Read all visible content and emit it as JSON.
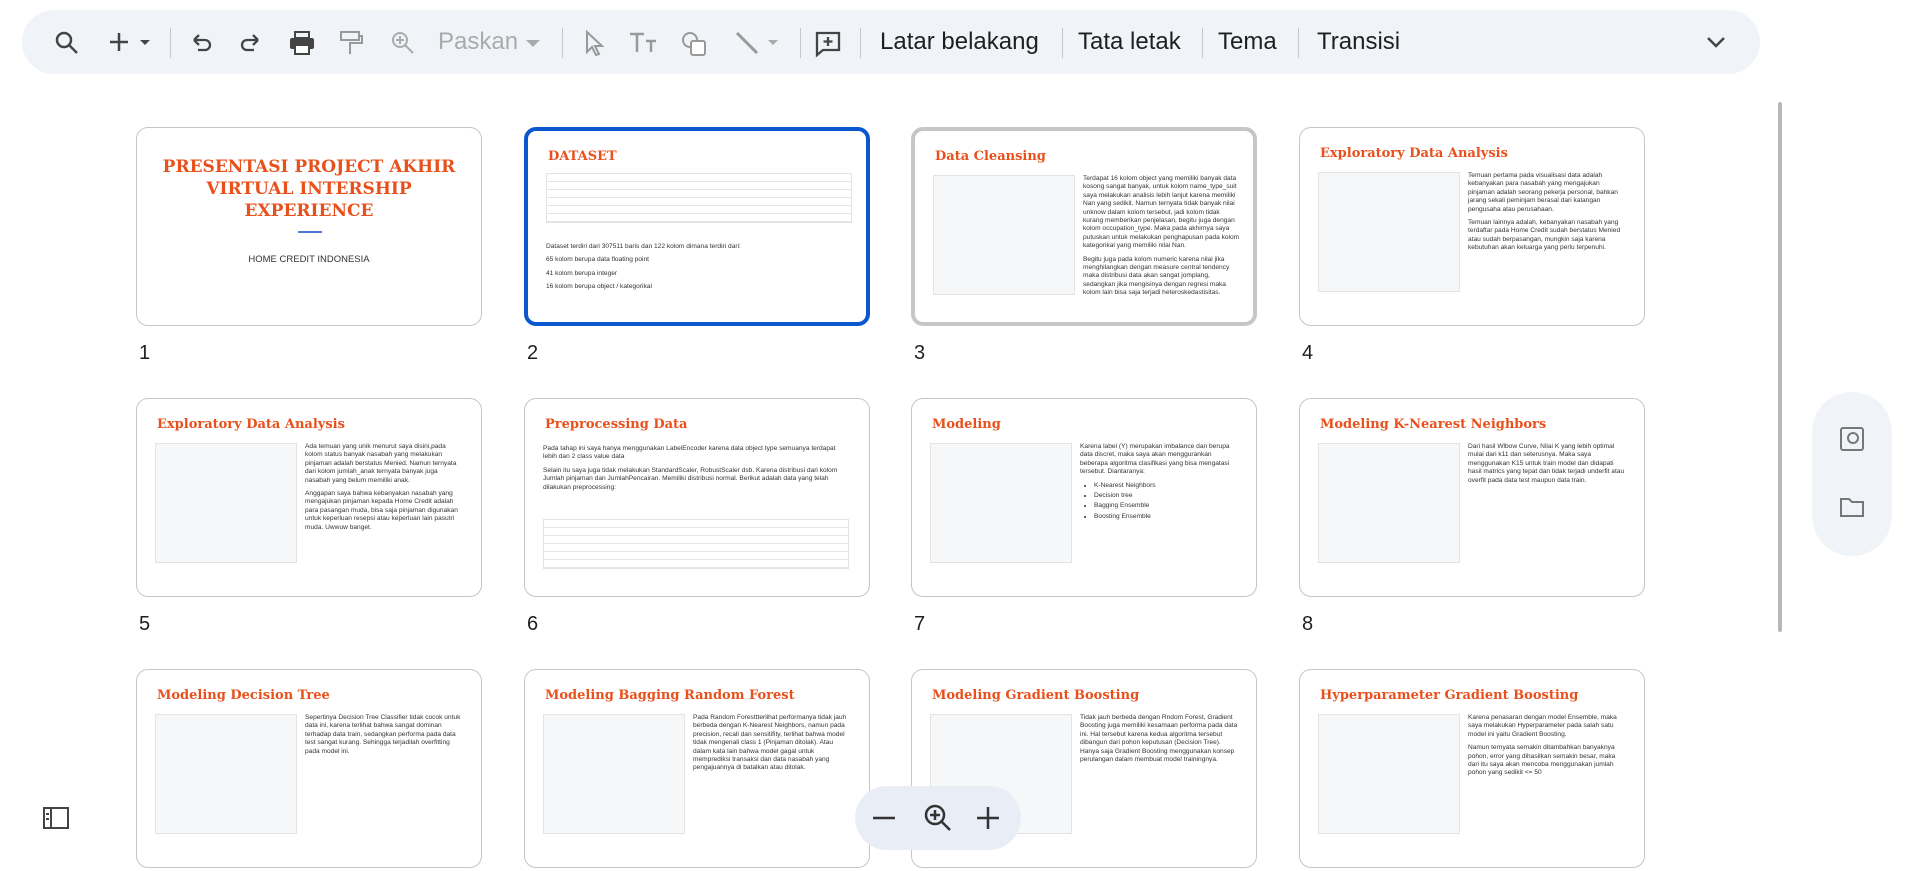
{
  "toolbar": {
    "zoom_label": "Paskan",
    "buttons": [
      "Latar belakang",
      "Tata letak",
      "Tema",
      "Transisi"
    ]
  },
  "slides": [
    {
      "number": "1",
      "title": "PRESENTASI PROJECT AKHIR VIRTUAL INTERSHIP EXPERIENCE",
      "paragraphs": [
        "HOME CREDIT INDONESIA"
      ]
    },
    {
      "number": "2",
      "title": "DATASET",
      "paragraphs": [
        "Dataset terdiri dari 307511 baris dan 122 kolom dimana terdiri dari:",
        "65 kolom berupa data floating point",
        "41 kolom berupa integer",
        "16 kolom berupa object / kategorikal"
      ]
    },
    {
      "number": "3",
      "title": "Data Cleansing",
      "paragraphs": [
        "Terdapat 16 kolom object yang memiliki banyak data kosong sangat banyak, untuk kolom name_type_suit saya melakukan analisis lebih lanjut karena memiliki Nan yang sedikit. Namun ternyata tidak banyak nilai unknow dalam kolom tersebut, jadi kolom tidak kurang memberikan penjelasan, begitu juga dengan kolom occupation_type. Maka pada akhirnya saya putuskan untuk melakukan penghapusan pada kolom kategorikal yang memiliki nilai Nan.",
        "Begitu juga pada kolom numeric karena nilai jika menghilangkan dengan measure central tendency maka distribusi data akan sangat jomplang, sedangkan jika mengisinya dengan regresi maka kolom lain bisa saja terjadi heteroskedastisitas."
      ]
    },
    {
      "number": "4",
      "title": "Exploratory Data Analysis",
      "paragraphs": [
        "Temuan pertama pada visualisasi data adalah kebanyakan para nasabah yang mengajukan pinjaman adalah seorang pekerja personal, bahkan jarang sekali peminjam berasal dari kalangan pengusaha atau perusahaan.",
        "Temuan lainnya adalah, kebanyakan nasabah yang terdaftar pada Home Credit sudah berstatus Menied atau sudah berpasangan, mungkin saja karena kebutuhan akan keluarga yang perlu terpenuhi."
      ]
    },
    {
      "number": "5",
      "title": "Exploratory Data Analysis",
      "paragraphs": [
        "Ada temuan yang unik menurut saya disini,pada kolom status banyak nasabah yang melakukan pinjaman adalah berstatus Menied. Namun ternyata dari kolom jumlah_anak ternyata banyak juga nasabah yang belum memiliki anak.",
        "Anggapan saya bahwa kebanyakan nasabah yang mengajukan pinjaman kepada Home Credit adalah para pasangan muda, bisa saja pinjaman digunakan untuk keperluan resepsi atau keperluan lain pasutri muda. Uwwuw banget."
      ]
    },
    {
      "number": "6",
      "title": "Preprocessing Data",
      "paragraphs": [
        "Pada tahap ini saya hanya menggunakan LabelEncoder karena data object type semuanya terdapat lebih dan 2 class value data",
        "Selain itu saya juga tidak melakukan StandardScaler, RobustScaler dsb. Karena distribusi dari kolom Jumlah pinjaman dan JumlahPencairan. Memiliki distribusi normal. Berikut adalah data yang telah dilakukan preprocessing:"
      ]
    },
    {
      "number": "7",
      "title": "Modeling",
      "paragraphs": [
        "Karena label (Y) merupakan imbalance dan berupa data discret, maka saya akan menggurankan beberapa algoritma clasifikasi yang bisa mengatasi tersebut. Diantaranya:"
      ],
      "list": [
        "K-Nearest Neighbors",
        "Decision tree",
        "Bagging Ensemble",
        "Boosting Ensemble"
      ]
    },
    {
      "number": "8",
      "title": "Modeling K-Nearest Neighbors",
      "paragraphs": [
        "Dari hasil Wlbow Curve, Nilai K yang lebih optimal mulai dari k11 dan seterusnya. Maka saya menggunakan K15 untuk train model dan didapati hasil matrics yang tepat dan tidak terjadi underfit atau overfit pada data test maupun data train."
      ]
    },
    {
      "title": "Modeling Decision Tree",
      "paragraphs": [
        "Sepertinya Decision Tree Classifier tidak cocok untuk data ini, karena terlihat bahwa sangat dominan terhadap data train, sedangkan performa pada data test sangat kurang. Sehingga terjadilah overfitting pada model ini."
      ]
    },
    {
      "title": "Modeling Bagging Random Forest",
      "paragraphs": [
        "Pada Random Foresttterlihat performanya tidak jauh berbeda dengan K-Nearest Neighbors, namun pada precision, recall dan sensitifity, terlihat bahwa model tidak mengenali class 1 (Pinjaman ditolak). Atau dalam kata lain bahwa model gagal untuk memprediksi transaksi dan data nasabah yang pengajuannya di batalkan atau ditolak."
      ]
    },
    {
      "title": "Modeling Gradient Boosting",
      "paragraphs": [
        "Tidak jauh berbeda dengan Rndom Forest, Gradient Boosting juga memiliki kesamaan performa pada data ini. Hal tersebut karena kedua algoritma tersebut dibangun dari pohon keputusan (Decision Tree). Hanya saja Gradient Boosting menggunakan konsep perulangan dalam membuat model trainingnya."
      ]
    },
    {
      "title": "Hyperparameter Gradient Boosting",
      "paragraphs": [
        "Karena penasaran dengan model Ensemble, maka saya melakukan Hyperparameter pada salah satu model ini yaitu Gradient Boosting.",
        "Namun ternyata semakin ditambahkan banyaknya pohon, error yang dihasilkan semakin besar, maka dari itu saya akan mencoba menggunakan jumlah pohon yang sedikit <= 50"
      ]
    }
  ]
}
